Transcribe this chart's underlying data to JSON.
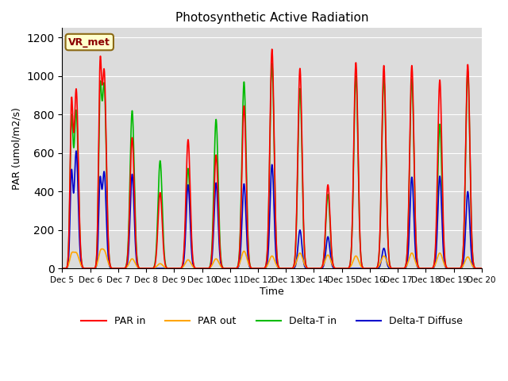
{
  "title": "Photosynthetic Active Radiation",
  "ylabel": "PAR (umol/m2/s)",
  "xlabel": "Time",
  "annotation": "VR_met",
  "ylim": [
    0,
    1250
  ],
  "background_color": "#dcdcdc",
  "legend_labels": [
    "PAR in",
    "PAR out",
    "Delta-T in",
    "Delta-T Diffuse"
  ],
  "legend_colors": [
    "#ff0000",
    "#ffa500",
    "#00bb00",
    "#0000cc"
  ],
  "x_tick_labels": [
    "Dec 5",
    "Dec 6",
    "Dec 7",
    "Dec 8",
    "Dec 9",
    "Dec 10",
    "Dec 11",
    "Dec 12",
    "Dec 13",
    "Dec 14",
    "Dec 15",
    "Dec 16",
    "Dec 17",
    "Dec 18",
    "Dec 19",
    "Dec 20"
  ],
  "n_days": 15,
  "pts_per_day": 200,
  "day_peaks": {
    "PAR_in": [
      930,
      1020,
      680,
      395,
      670,
      590,
      845,
      1140,
      1040,
      435,
      1070,
      1055,
      1055,
      980,
      1060
    ],
    "PAR_in2": [
      810,
      940,
      0,
      0,
      0,
      0,
      0,
      0,
      0,
      0,
      0,
      0,
      0,
      0,
      0
    ],
    "PAR_out": [
      80,
      90,
      50,
      25,
      45,
      50,
      90,
      65,
      80,
      70,
      65,
      65,
      80,
      80,
      60
    ],
    "PAR_out2": [
      60,
      60,
      0,
      0,
      0,
      0,
      0,
      0,
      0,
      0,
      0,
      0,
      0,
      0,
      0
    ],
    "DeltaT_in": [
      820,
      950,
      820,
      560,
      520,
      775,
      970,
      1065,
      935,
      385,
      1000,
      990,
      985,
      750,
      1025
    ],
    "DeltaT_in2": [
      730,
      820,
      0,
      0,
      0,
      0,
      0,
      0,
      0,
      0,
      0,
      0,
      0,
      0,
      0
    ],
    "DeltaT_diff": [
      610,
      500,
      490,
      0,
      435,
      445,
      440,
      540,
      200,
      165,
      0,
      105,
      475,
      480,
      400
    ],
    "DeltaT_diff2": [
      480,
      420,
      0,
      0,
      0,
      0,
      0,
      0,
      0,
      0,
      0,
      0,
      0,
      0,
      0
    ],
    "peak_offset": [
      0.5,
      0.5,
      0.5,
      0.5,
      0.5,
      0.5,
      0.5,
      0.5,
      0.5,
      0.5,
      0.5,
      0.5,
      0.5,
      0.5,
      0.5
    ],
    "peak2_offset": [
      0.33,
      0.35,
      0,
      0,
      0,
      0,
      0,
      0,
      0,
      0,
      0,
      0,
      0,
      0,
      0
    ]
  }
}
